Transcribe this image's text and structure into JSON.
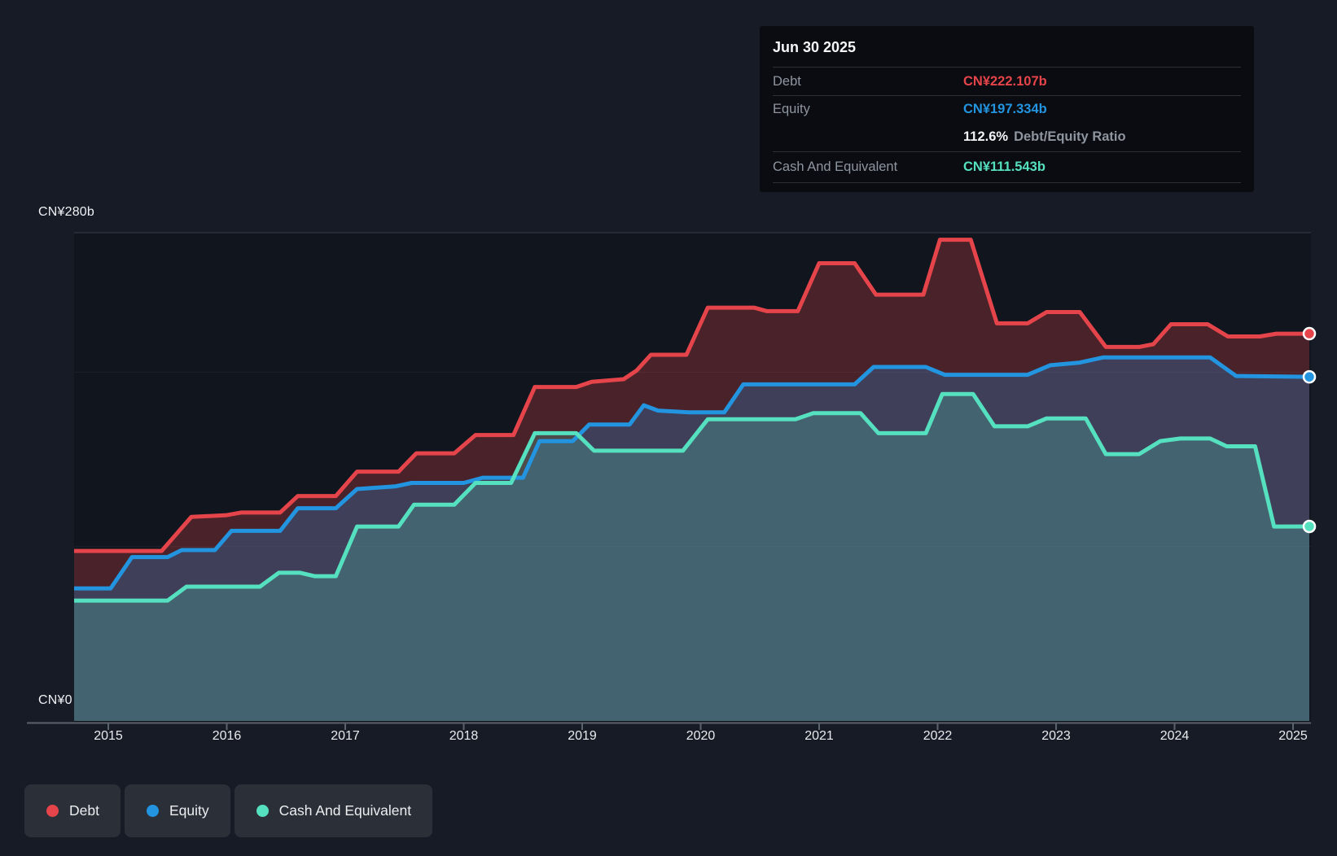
{
  "chart_data": {
    "type": "area",
    "description": "Debt, Equity and Cash history (stepped area chart)",
    "currency": "CN¥ billions",
    "x_range": [
      2014.71,
      2025.14
    ],
    "x_tick_years": [
      "2015",
      "2016",
      "2017",
      "2018",
      "2019",
      "2020",
      "2021",
      "2022",
      "2023",
      "2024",
      "2025"
    ],
    "ylim": [
      0,
      280
    ],
    "y_top_label": "CN¥280b",
    "y_zero_label": "CN¥0",
    "gridline_values": [
      280,
      200,
      100
    ],
    "legend_position": "bottom-left",
    "series": [
      {
        "key": "debt",
        "name": "Debt",
        "color": "#e5454a",
        "fill": "rgba(228,73,77,0.28)",
        "points": [
          [
            2014.71,
            97.5
          ],
          [
            2015.45,
            97.5
          ],
          [
            2015.7,
            117
          ],
          [
            2016.0,
            118
          ],
          [
            2016.12,
            119.5
          ],
          [
            2016.45,
            119.5
          ],
          [
            2016.6,
            129
          ],
          [
            2016.92,
            129
          ],
          [
            2017.1,
            143
          ],
          [
            2017.45,
            143
          ],
          [
            2017.6,
            153.5
          ],
          [
            2017.92,
            153.5
          ],
          [
            2018.1,
            164
          ],
          [
            2018.42,
            164
          ],
          [
            2018.6,
            191.5
          ],
          [
            2018.95,
            191.5
          ],
          [
            2019.08,
            194.5
          ],
          [
            2019.35,
            196
          ],
          [
            2019.46,
            201
          ],
          [
            2019.58,
            210
          ],
          [
            2019.88,
            210
          ],
          [
            2020.06,
            237
          ],
          [
            2020.45,
            237
          ],
          [
            2020.56,
            235
          ],
          [
            2020.82,
            235
          ],
          [
            2021.0,
            262.5
          ],
          [
            2021.3,
            262.5
          ],
          [
            2021.48,
            244.5
          ],
          [
            2021.88,
            244.5
          ],
          [
            2022.02,
            276
          ],
          [
            2022.28,
            276
          ],
          [
            2022.5,
            228
          ],
          [
            2022.76,
            228
          ],
          [
            2022.92,
            234.5
          ],
          [
            2023.2,
            234.5
          ],
          [
            2023.42,
            214.5
          ],
          [
            2023.7,
            214.5
          ],
          [
            2023.82,
            216
          ],
          [
            2023.97,
            227.5
          ],
          [
            2024.28,
            227.5
          ],
          [
            2024.45,
            220.5
          ],
          [
            2024.72,
            220.5
          ],
          [
            2024.86,
            222.1
          ],
          [
            2025.14,
            222.107
          ]
        ]
      },
      {
        "key": "equity",
        "name": "Equity",
        "color": "#2394df",
        "fill": "rgba(35,148,223,0.26)",
        "points": [
          [
            2014.71,
            76
          ],
          [
            2015.02,
            76
          ],
          [
            2015.2,
            94
          ],
          [
            2015.5,
            94
          ],
          [
            2015.62,
            98
          ],
          [
            2015.9,
            98
          ],
          [
            2016.04,
            109
          ],
          [
            2016.45,
            109
          ],
          [
            2016.6,
            122
          ],
          [
            2016.92,
            122
          ],
          [
            2017.1,
            133
          ],
          [
            2017.42,
            134.5
          ],
          [
            2017.56,
            136.5
          ],
          [
            2018.0,
            136.5
          ],
          [
            2018.16,
            139.5
          ],
          [
            2018.5,
            139.5
          ],
          [
            2018.64,
            160.5
          ],
          [
            2018.92,
            160.5
          ],
          [
            2019.06,
            170
          ],
          [
            2019.4,
            170
          ],
          [
            2019.52,
            181
          ],
          [
            2019.64,
            178
          ],
          [
            2019.9,
            177
          ],
          [
            2020.2,
            177
          ],
          [
            2020.36,
            193
          ],
          [
            2021.3,
            193
          ],
          [
            2021.46,
            203
          ],
          [
            2021.9,
            203
          ],
          [
            2022.06,
            198.5
          ],
          [
            2022.76,
            198.5
          ],
          [
            2022.95,
            204
          ],
          [
            2023.2,
            205.5
          ],
          [
            2023.4,
            208.5
          ],
          [
            2024.3,
            208.5
          ],
          [
            2024.52,
            197.8
          ],
          [
            2025.14,
            197.334
          ]
        ]
      },
      {
        "key": "cash",
        "name": "Cash And Equivalent",
        "color": "#55e0bf",
        "fill": "rgba(87,226,194,0.22)",
        "points": [
          [
            2014.71,
            69
          ],
          [
            2015.5,
            69
          ],
          [
            2015.66,
            77
          ],
          [
            2016.28,
            77
          ],
          [
            2016.44,
            85
          ],
          [
            2016.62,
            85
          ],
          [
            2016.74,
            83
          ],
          [
            2016.92,
            83
          ],
          [
            2017.1,
            111.5
          ],
          [
            2017.45,
            111.5
          ],
          [
            2017.58,
            124
          ],
          [
            2017.92,
            124
          ],
          [
            2018.1,
            136.5
          ],
          [
            2018.4,
            136.5
          ],
          [
            2018.6,
            165
          ],
          [
            2018.95,
            165
          ],
          [
            2019.1,
            155
          ],
          [
            2019.85,
            155
          ],
          [
            2020.06,
            173
          ],
          [
            2020.8,
            173
          ],
          [
            2020.95,
            176.5
          ],
          [
            2021.35,
            176.5
          ],
          [
            2021.5,
            165
          ],
          [
            2021.9,
            165
          ],
          [
            2022.04,
            187.5
          ],
          [
            2022.3,
            187.5
          ],
          [
            2022.48,
            169
          ],
          [
            2022.76,
            169
          ],
          [
            2022.92,
            173.5
          ],
          [
            2023.25,
            173.5
          ],
          [
            2023.42,
            153
          ],
          [
            2023.7,
            153
          ],
          [
            2023.88,
            160.5
          ],
          [
            2024.05,
            162
          ],
          [
            2024.3,
            162
          ],
          [
            2024.44,
            157.5
          ],
          [
            2024.68,
            157.5
          ],
          [
            2024.84,
            111.5
          ],
          [
            2025.14,
            111.543
          ]
        ]
      }
    ]
  },
  "axis": {
    "y_top_label": "CN¥280b",
    "y_zero_label": "CN¥0",
    "years": [
      "2015",
      "2016",
      "2017",
      "2018",
      "2019",
      "2020",
      "2021",
      "2022",
      "2023",
      "2024",
      "2025"
    ]
  },
  "tooltip": {
    "date": "Jun 30 2025",
    "debt_label": "Debt",
    "debt_value": "CN¥222.107b",
    "equity_label": "Equity",
    "equity_value": "CN¥197.334b",
    "ratio_value": "112.6%",
    "ratio_label": "Debt/Equity Ratio",
    "cash_label": "Cash And Equivalent",
    "cash_value": "CN¥111.543b"
  },
  "legend": {
    "items": [
      {
        "label": "Debt",
        "color": "#e5454a"
      },
      {
        "label": "Equity",
        "color": "#2394df"
      },
      {
        "label": "Cash And Equivalent",
        "color": "#55e0bf"
      }
    ]
  },
  "colors": {
    "page_background": "#161b25",
    "plot_background": "#10151e",
    "axis_line": "#5c626b",
    "tooltip_background": "#0a0c11",
    "legend_pill_background": "#2a2f38"
  }
}
